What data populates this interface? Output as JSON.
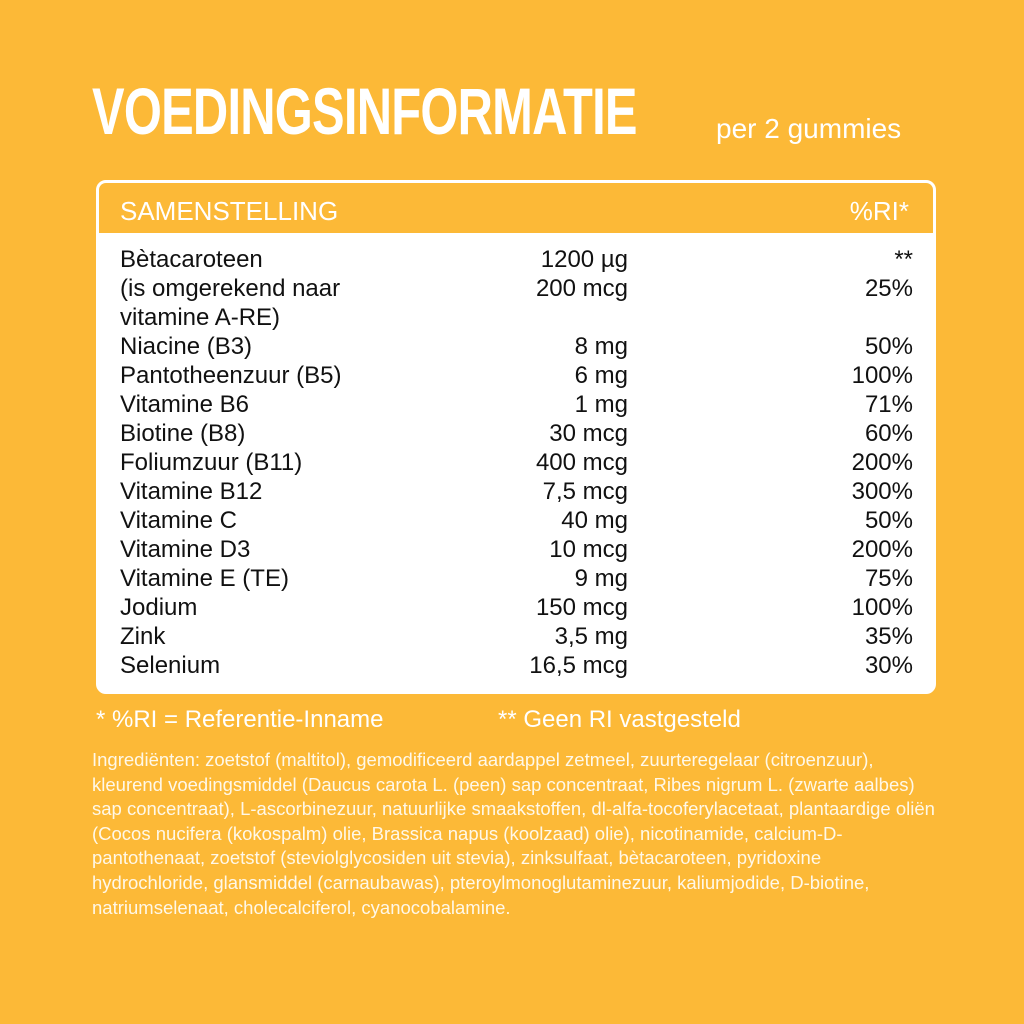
{
  "header": {
    "title": "VOEDINGSINFORMATIE",
    "subtitle": "per 2 gummies"
  },
  "table": {
    "columns": [
      "SAMENSTELLING",
      "%RI*"
    ],
    "rows": [
      [
        "Bètacaroteen",
        "1200 µg",
        "**"
      ],
      [
        "(is omgerekend naar vitamine A-RE)",
        "200 mcg",
        "25%"
      ],
      [
        "Niacine (B3)",
        "8 mg",
        "50%"
      ],
      [
        "Pantotheenzuur (B5)",
        "6 mg",
        "100%"
      ],
      [
        "Vitamine B6",
        "1 mg",
        "71%"
      ],
      [
        "Biotine (B8)",
        "30 mcg",
        "60%"
      ],
      [
        "Foliumzuur (B11)",
        "400 mcg",
        "200%"
      ],
      [
        "Vitamine B12",
        "7,5 mcg",
        "300%"
      ],
      [
        "Vitamine C",
        "40 mg",
        "50%"
      ],
      [
        "Vitamine D3",
        "10 mcg",
        "200%"
      ],
      [
        "Vitamine E (TE)",
        "9 mg",
        "75%"
      ],
      [
        "Jodium",
        "150 mcg",
        "100%"
      ],
      [
        "Zink",
        "3,5 mg",
        "35%"
      ],
      [
        "Selenium",
        "16,5 mcg",
        "30%"
      ]
    ]
  },
  "footnotes": [
    "* %RI = Referentie-Inname",
    "** Geen RI vastgesteld"
  ],
  "ingredients": "Ingrediënten: zoetstof (maltitol), gemodificeerd aardappel zetmeel, zuurteregelaar (citroenzuur), kleurend voedingsmiddel (Daucus carota L. (peen) sap concentraat, Ribes nigrum L. (zwarte aalbes) sap concentraat), L-ascorbinezuur, natuurlijke smaakstoffen, dl-alfa-tocoferylacetaat, plantaardige oliën (Cocos nucifera (kokospalm) olie, Brassica napus (koolzaad) olie), nicotinamide, calcium-D-pantothenaat, zoetstof (steviolglycosiden uit stevia), zinksulfaat, bètacaroteen, pyridoxine hydrochloride, glansmiddel (carnaubawas), pteroylmonoglutaminezuur, kaliumjodide, D-biotine, natriumselenaat, cholecalciferol, cyanocobalamine."
}
